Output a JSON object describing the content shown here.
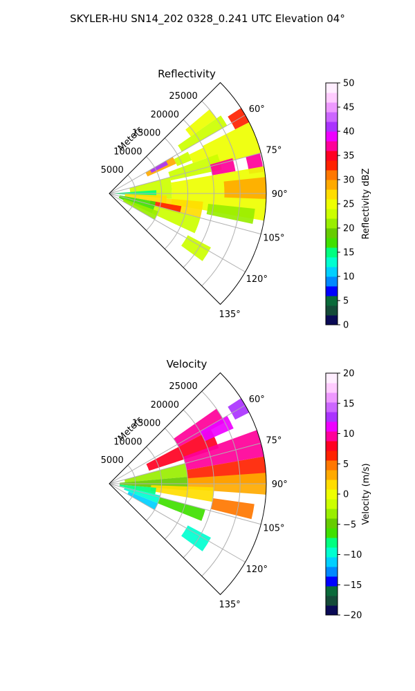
{
  "figure": {
    "suptitle": "SKYLER-HU  SN14_202  0328_0.241 UTC Elevation 04°"
  },
  "chart_data": [
    {
      "type": "heatmap",
      "projection": "polar-sector",
      "title": "Reflectivity",
      "range_label": "Meters",
      "range_ticks": [
        {
          "value": 5000,
          "label": "5000"
        },
        {
          "value": 10000,
          "label": "10000"
        },
        {
          "value": 15000,
          "label": "15000"
        },
        {
          "value": 20000,
          "label": "20000"
        },
        {
          "value": 25000,
          "label": "25000"
        }
      ],
      "range_max": 30000,
      "theta_range": [
        45,
        135
      ],
      "theta_ticks": [
        {
          "value": 60,
          "label": "60°"
        },
        {
          "value": 75,
          "label": "75°"
        },
        {
          "value": 90,
          "label": "90°"
        },
        {
          "value": 105,
          "label": "105°"
        },
        {
          "value": 120,
          "label": "120°"
        },
        {
          "value": 135,
          "label": "135°"
        }
      ],
      "grid": true,
      "colorbar": {
        "label": "Reflectivity dBZ",
        "range": [
          0,
          50
        ],
        "ticks": [
          {
            "value": 0,
            "label": "0"
          },
          {
            "value": 5,
            "label": "5"
          },
          {
            "value": 10,
            "label": "10"
          },
          {
            "value": 15,
            "label": "15"
          },
          {
            "value": 20,
            "label": "20"
          },
          {
            "value": 25,
            "label": "25"
          },
          {
            "value": 30,
            "label": "30"
          },
          {
            "value": 35,
            "label": "35"
          },
          {
            "value": 40,
            "label": "40"
          },
          {
            "value": 45,
            "label": "45"
          },
          {
            "value": 50,
            "label": "50"
          }
        ],
        "colors": [
          "#0a0a55",
          "#144a38",
          "#0a6a3a",
          "#0000ff",
          "#0088ff",
          "#00d0ff",
          "#00ffd0",
          "#00ff80",
          "#40e000",
          "#66cc00",
          "#99ee00",
          "#ccff00",
          "#eeff00",
          "#ffdd00",
          "#ffaa00",
          "#ff7700",
          "#ff2200",
          "#ff0022",
          "#ff0099",
          "#ee00ff",
          "#aa33ff",
          "#cc66ff",
          "#ee99ff",
          "#ffccff",
          "#ffeeff"
        ]
      },
      "data_extent_km": 25,
      "cells": [
        {
          "theta": [
            50,
            55
          ],
          "r": [
            19000,
            25000
          ],
          "value": 24
        },
        {
          "theta": [
            55,
            60
          ],
          "r": [
            16000,
            26000
          ],
          "value": 23
        },
        {
          "theta": [
            57,
            63
          ],
          "r": [
            27000,
            30000
          ],
          "value": 32
        },
        {
          "theta": [
            60,
            66
          ],
          "r": [
            8000,
            14000
          ],
          "value": 28
        },
        {
          "theta": [
            60,
            64
          ],
          "r": [
            9000,
            12500
          ],
          "value": 41
        },
        {
          "theta": [
            62,
            68
          ],
          "r": [
            14000,
            17000
          ],
          "value": 22
        },
        {
          "theta": [
            64,
            70
          ],
          "r": [
            17000,
            20000
          ],
          "value": 24
        },
        {
          "theta": [
            63,
            75
          ],
          "r": [
            20000,
            30000
          ],
          "value": 24
        },
        {
          "theta": [
            70,
            78
          ],
          "r": [
            12000,
            22000
          ],
          "value": 23
        },
        {
          "theta": [
            74,
            80
          ],
          "r": [
            20000,
            24500
          ],
          "value": 36
        },
        {
          "theta": [
            75,
            82
          ],
          "r": [
            27000,
            29800
          ],
          "value": 37
        },
        {
          "theta": [
            75,
            95
          ],
          "r": [
            4000,
            12000
          ],
          "value": 22
        },
        {
          "theta": [
            80,
            100
          ],
          "r": [
            12000,
            30000
          ],
          "value": 25
        },
        {
          "theta": [
            84,
            92
          ],
          "r": [
            22000,
            30000
          ],
          "value": 28
        },
        {
          "theta": [
            86,
            94
          ],
          "r": [
            500,
            9000
          ],
          "value": 15
        },
        {
          "theta": [
            92,
            100
          ],
          "r": [
            3000,
            11000
          ],
          "value": 27
        },
        {
          "theta": [
            95,
            105
          ],
          "r": [
            10000,
            18000
          ],
          "value": 26
        },
        {
          "theta": [
            96,
            102
          ],
          "r": [
            19000,
            28000
          ],
          "value": 21
        },
        {
          "theta": [
            100,
            106
          ],
          "r": [
            8000,
            14000
          ],
          "value": 33
        },
        {
          "theta": [
            100,
            115
          ],
          "r": [
            2000,
            9000
          ],
          "value": 17
        },
        {
          "theta": [
            105,
            115
          ],
          "r": [
            9000,
            18000
          ],
          "value": 22
        },
        {
          "theta": [
            110,
            120
          ],
          "r": [
            3000,
            10000
          ],
          "value": 20
        },
        {
          "theta": [
            118,
            126
          ],
          "r": [
            17000,
            22000
          ],
          "value": 22
        }
      ]
    },
    {
      "type": "heatmap",
      "projection": "polar-sector",
      "title": "Velocity",
      "range_label": "Meters",
      "range_ticks": [
        {
          "value": 5000,
          "label": "5000"
        },
        {
          "value": 10000,
          "label": "10000"
        },
        {
          "value": 15000,
          "label": "15000"
        },
        {
          "value": 20000,
          "label": "20000"
        },
        {
          "value": 25000,
          "label": "25000"
        }
      ],
      "range_max": 30000,
      "theta_range": [
        45,
        135
      ],
      "theta_ticks": [
        {
          "value": 60,
          "label": "60°"
        },
        {
          "value": 75,
          "label": "75°"
        },
        {
          "value": 90,
          "label": "90°"
        },
        {
          "value": 105,
          "label": "105°"
        },
        {
          "value": 120,
          "label": "120°"
        },
        {
          "value": 135,
          "label": "135°"
        }
      ],
      "grid": true,
      "colorbar": {
        "label": "Velocity (m/s)",
        "range": [
          -20,
          20
        ],
        "ticks": [
          {
            "value": -20,
            "label": "−20"
          },
          {
            "value": -15,
            "label": "−15"
          },
          {
            "value": -10,
            "label": "−10"
          },
          {
            "value": -5,
            "label": "−5"
          },
          {
            "value": 0,
            "label": "0"
          },
          {
            "value": 5,
            "label": "5"
          },
          {
            "value": 10,
            "label": "10"
          },
          {
            "value": 15,
            "label": "15"
          },
          {
            "value": 20,
            "label": "20"
          }
        ],
        "colors": [
          "#0a0a55",
          "#144a38",
          "#0a6a3a",
          "#0000ff",
          "#0088ff",
          "#00d0ff",
          "#00ffd0",
          "#00ff80",
          "#40e000",
          "#66cc00",
          "#99ee00",
          "#ccff00",
          "#eeff00",
          "#ffdd00",
          "#ffaa00",
          "#ff7700",
          "#ff2200",
          "#ff0022",
          "#ff0099",
          "#ee00ff",
          "#aa33ff",
          "#cc66ff",
          "#ee99ff",
          "#ffccff",
          "#ffeeff"
        ]
      },
      "cells": [
        {
          "theta": [
            55,
            62
          ],
          "r": [
            15000,
            25000
          ],
          "value": 10
        },
        {
          "theta": [
            57,
            63
          ],
          "r": [
            27000,
            30000
          ],
          "value": 13
        },
        {
          "theta": [
            62,
            72
          ],
          "r": [
            8000,
            22000
          ],
          "value": 8
        },
        {
          "theta": [
            60,
            66
          ],
          "r": [
            20000,
            26000
          ],
          "value": 11
        },
        {
          "theta": [
            70,
            80
          ],
          "r": [
            15000,
            30000
          ],
          "value": 9
        },
        {
          "theta": [
            75,
            85
          ],
          "r": [
            3000,
            15000
          ],
          "value": -3
        },
        {
          "theta": [
            80,
            90
          ],
          "r": [
            15000,
            30000
          ],
          "value": 6
        },
        {
          "theta": [
            85,
            95
          ],
          "r": [
            2000,
            15000
          ],
          "value": -5
        },
        {
          "theta": [
            86,
            94
          ],
          "r": [
            15000,
            30000
          ],
          "value": 3
        },
        {
          "theta": [
            92,
            100
          ],
          "r": [
            8000,
            20000
          ],
          "value": 1
        },
        {
          "theta": [
            95,
            103
          ],
          "r": [
            2000,
            9000
          ],
          "value": -8
        },
        {
          "theta": [
            98,
            104
          ],
          "r": [
            20000,
            28000
          ],
          "value": 4
        },
        {
          "theta": [
            103,
            112
          ],
          "r": [
            3000,
            10000
          ],
          "value": -10
        },
        {
          "theta": [
            105,
            112
          ],
          "r": [
            10000,
            19000
          ],
          "value": -7
        },
        {
          "theta": [
            112,
            120
          ],
          "r": [
            4000,
            10000
          ],
          "value": -11
        },
        {
          "theta": [
            118,
            126
          ],
          "r": [
            17000,
            22000
          ],
          "value": -10
        }
      ]
    }
  ]
}
